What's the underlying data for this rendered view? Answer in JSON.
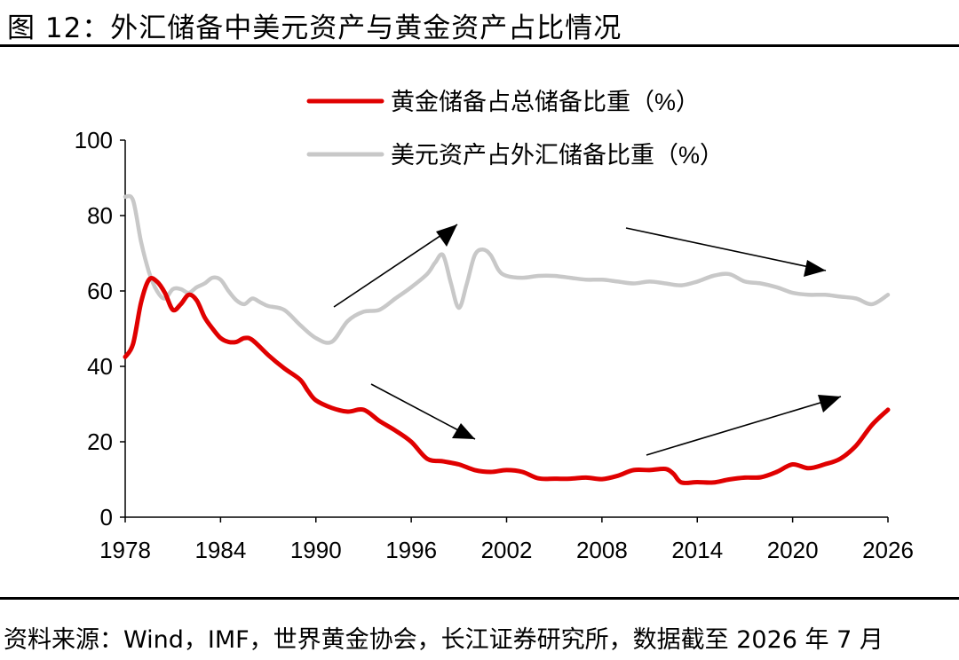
{
  "figure": {
    "title": "图 12：外汇储备中美元资产与黄金资产占比情况",
    "source": "资料来源：Wind，IMF，世界黄金协会，长江证券研究所，数据截至 2026 年 7 月"
  },
  "chart_data": {
    "type": "line",
    "xlim": [
      1978,
      2026
    ],
    "ylim": [
      0,
      100
    ],
    "x_ticks": [
      "1978",
      "1984",
      "1990",
      "1996",
      "2002",
      "2008",
      "2014",
      "2020",
      "2026"
    ],
    "y_ticks": [
      "0",
      "20",
      "40",
      "60",
      "80",
      "100"
    ],
    "grid": false,
    "legend_position": "top",
    "series": [
      {
        "name": "黄金储备占总储备比重（%）",
        "color": "#e00000",
        "points": [
          [
            1978,
            42.5
          ],
          [
            1978.5,
            46
          ],
          [
            1979,
            57
          ],
          [
            1979.5,
            63
          ],
          [
            1980,
            62.5
          ],
          [
            1980.5,
            59.5
          ],
          [
            1981,
            55
          ],
          [
            1981.5,
            56.5
          ],
          [
            1982,
            59
          ],
          [
            1982.5,
            57.5
          ],
          [
            1983,
            53
          ],
          [
            1983.5,
            50
          ],
          [
            1984,
            47.5
          ],
          [
            1984.5,
            46.5
          ],
          [
            1985,
            46.5
          ],
          [
            1985.5,
            47.5
          ],
          [
            1986,
            47
          ],
          [
            1987,
            43
          ],
          [
            1988,
            39.5
          ],
          [
            1989,
            36.5
          ],
          [
            1989.5,
            33.5
          ],
          [
            1990,
            31
          ],
          [
            1991,
            29
          ],
          [
            1992,
            28
          ],
          [
            1993,
            28.5
          ],
          [
            1994,
            25.5
          ],
          [
            1995,
            23
          ],
          [
            1996,
            20
          ],
          [
            1997,
            15.5
          ],
          [
            1998,
            14.8
          ],
          [
            1999,
            14
          ],
          [
            2000,
            12.5
          ],
          [
            2001,
            12
          ],
          [
            2002,
            12.5
          ],
          [
            2003,
            12
          ],
          [
            2004,
            10.3
          ],
          [
            2005,
            10.2
          ],
          [
            2006,
            10.2
          ],
          [
            2007,
            10.5
          ],
          [
            2008,
            10.1
          ],
          [
            2009,
            11
          ],
          [
            2010,
            12.5
          ],
          [
            2011,
            12.5
          ],
          [
            2012,
            12.8
          ],
          [
            2012.5,
            11.5
          ],
          [
            2013,
            9.2
          ],
          [
            2014,
            9.3
          ],
          [
            2015,
            9.2
          ],
          [
            2016,
            10
          ],
          [
            2017,
            10.5
          ],
          [
            2018,
            10.6
          ],
          [
            2019,
            12
          ],
          [
            2020,
            14
          ],
          [
            2021,
            13
          ],
          [
            2022,
            14
          ],
          [
            2023,
            15.5
          ],
          [
            2024,
            19
          ],
          [
            2025,
            24.5
          ],
          [
            2026,
            28.5
          ]
        ]
      },
      {
        "name": "美元资产占外汇储备比重（%）",
        "color": "#c8c8c8",
        "points": [
          [
            1978,
            85
          ],
          [
            1978.5,
            84
          ],
          [
            1979,
            73
          ],
          [
            1979.5,
            65
          ],
          [
            1980,
            60
          ],
          [
            1980.5,
            58
          ],
          [
            1981,
            60.5
          ],
          [
            1981.5,
            60.5
          ],
          [
            1982,
            59.5
          ],
          [
            1982.5,
            61
          ],
          [
            1983,
            62
          ],
          [
            1983.5,
            63.5
          ],
          [
            1984,
            63
          ],
          [
            1984.5,
            60
          ],
          [
            1985,
            57.5
          ],
          [
            1985.5,
            56.5
          ],
          [
            1986,
            58
          ],
          [
            1986.5,
            57
          ],
          [
            1987,
            56
          ],
          [
            1988,
            55
          ],
          [
            1989,
            51
          ],
          [
            1990,
            47.5
          ],
          [
            1991,
            46.5
          ],
          [
            1992,
            52
          ],
          [
            1993,
            54.5
          ],
          [
            1994,
            55
          ],
          [
            1995,
            58
          ],
          [
            1996,
            61
          ],
          [
            1997,
            64.5
          ],
          [
            1997.5,
            67.5
          ],
          [
            1998,
            69.5
          ],
          [
            1998.5,
            62
          ],
          [
            1999,
            55.5
          ],
          [
            1999.5,
            62
          ],
          [
            2000,
            69.5
          ],
          [
            2000.5,
            71
          ],
          [
            2001,
            69.5
          ],
          [
            2001.5,
            65.5
          ],
          [
            2002,
            64
          ],
          [
            2003,
            63.5
          ],
          [
            2004,
            64
          ],
          [
            2005,
            64
          ],
          [
            2006,
            63.5
          ],
          [
            2007,
            63
          ],
          [
            2008,
            63
          ],
          [
            2009,
            62.5
          ],
          [
            2010,
            62
          ],
          [
            2011,
            62.5
          ],
          [
            2012,
            62
          ],
          [
            2013,
            61.5
          ],
          [
            2014,
            62.5
          ],
          [
            2015,
            64
          ],
          [
            2016,
            64.5
          ],
          [
            2017,
            62.5
          ],
          [
            2018,
            62
          ],
          [
            2019,
            61
          ],
          [
            2020,
            59.5
          ],
          [
            2021,
            59
          ],
          [
            2022,
            59
          ],
          [
            2023,
            58.5
          ],
          [
            2024,
            58
          ],
          [
            2025,
            56.5
          ],
          [
            2026,
            59
          ]
        ]
      }
    ]
  }
}
